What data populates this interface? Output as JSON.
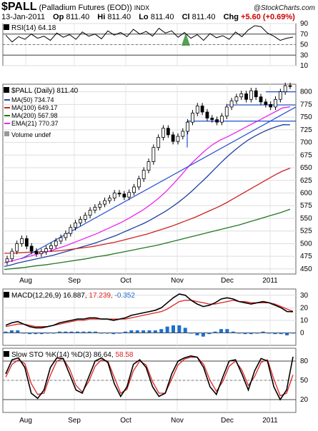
{
  "header": {
    "symbol": "$PALL",
    "name": "(Palladium Futures (EOD))",
    "exchange": "INDX",
    "source": "@StockCharts.com",
    "date": "13-Jan-2011",
    "open_label": "Op",
    "open": "811.40",
    "high_label": "Hi",
    "high": "811.40",
    "low_label": "Lo",
    "low": "811.40",
    "close_label": "Cl",
    "close": "811.40",
    "change_label": "Chg",
    "change": "+5.60 (+0.69%)",
    "change_color": "#cc0000"
  },
  "chart_data": [
    {
      "type": "line",
      "panel": "rsi",
      "title": "RSI(14) 64.18",
      "ylim": [
        10,
        90
      ],
      "yticks": [
        10,
        30,
        50,
        70,
        90
      ],
      "reference_lines": [
        30,
        70
      ],
      "series": [
        {
          "name": "RSI(14)",
          "values": [
            68,
            55,
            65,
            60,
            70,
            62,
            66,
            58,
            72,
            64,
            69,
            60,
            74,
            66,
            70,
            61,
            76,
            68,
            73,
            65,
            79,
            70,
            75,
            66,
            81,
            72,
            76,
            64,
            73,
            62,
            69,
            58,
            71,
            63,
            67,
            60,
            74,
            65,
            78,
            86,
            84,
            72,
            66,
            58,
            62,
            64.18
          ],
          "color": "#000000"
        }
      ]
    },
    {
      "type": "candlestick",
      "panel": "price",
      "title": "$PALL (Daily) 811.40",
      "x_labels": [
        "Aug",
        "Sep",
        "Oct",
        "Nov",
        "Dec",
        "2011"
      ],
      "ylim": [
        440,
        815
      ],
      "yticks": [
        450,
        475,
        500,
        525,
        550,
        575,
        600,
        625,
        650,
        675,
        700,
        725,
        750,
        775,
        800
      ],
      "closes": [
        470,
        485,
        500,
        510,
        495,
        485,
        480,
        484,
        490,
        496,
        505,
        512,
        520,
        532,
        541,
        548,
        556,
        566,
        572,
        578,
        585,
        590,
        600,
        598,
        592,
        601,
        612,
        628,
        645,
        662,
        690,
        710,
        728,
        715,
        702,
        712,
        722,
        740,
        758,
        772,
        760,
        748,
        745,
        740,
        752,
        770,
        782,
        790,
        796,
        785,
        802,
        790,
        780,
        775,
        770,
        785,
        800,
        812,
        811.4
      ],
      "overlays": [
        {
          "name": "MA(50)",
          "value": "734.74",
          "color": "#1f3fa0",
          "values": [
            455,
            458,
            462,
            465,
            468,
            471,
            474,
            477,
            481,
            485,
            489,
            493,
            497,
            501,
            506,
            511,
            516,
            522,
            528,
            534,
            540,
            547,
            555,
            563,
            572,
            582,
            593,
            605,
            618,
            631,
            645,
            659,
            672,
            684,
            695,
            705,
            713,
            720,
            726,
            731,
            735,
            734.74
          ]
        },
        {
          "name": "MA(100)",
          "value": "649.17",
          "color": "#cc2222",
          "values": [
            481,
            481,
            482,
            483,
            483,
            484,
            485,
            486,
            488,
            490,
            492,
            494,
            497,
            500,
            503,
            507,
            511,
            515,
            519,
            524,
            529,
            534,
            540,
            546,
            552,
            559,
            566,
            573,
            581,
            590,
            599,
            608,
            617,
            626,
            635,
            643,
            649.17
          ]
        },
        {
          "name": "MA(200)",
          "value": "567.98",
          "color": "#227722",
          "values": [
            449,
            451,
            453,
            456,
            458,
            461,
            464,
            467,
            470,
            474,
            477,
            481,
            485,
            489,
            493,
            497,
            502,
            507,
            512,
            517,
            522,
            527,
            532,
            537,
            543,
            549,
            555,
            561,
            567.98
          ]
        },
        {
          "name": "EMA(21)",
          "value": "770.37",
          "color": "#ee22ee",
          "values": [
            462,
            466,
            470,
            474,
            478,
            482,
            486,
            491,
            496,
            502,
            508,
            514,
            520,
            527,
            534,
            541,
            549,
            558,
            567,
            578,
            590,
            604,
            620,
            637,
            655,
            670,
            684,
            696,
            705,
            712,
            720,
            728,
            736,
            744,
            752,
            760,
            768,
            770.37
          ]
        }
      ],
      "volume_label": "Volume undef",
      "trendlines": [
        {
          "color": "#1f4fd0",
          "kind": "rising support"
        },
        {
          "color": "#1f4fd0",
          "kind": "horizontal 742"
        },
        {
          "color": "#1f4fd0",
          "kind": "horizontal 774"
        },
        {
          "color": "#1f4fd0",
          "kind": "horizontal 800"
        }
      ]
    },
    {
      "type": "line",
      "panel": "macd",
      "title": "MACD(12,26,9) 16.887, 17.239, -0.352",
      "title_parts": {
        "prefix": "MACD(12,26,9)",
        "macd": "16.887",
        "signal": "17.239",
        "hist": "-0.352"
      },
      "ylim": [
        -10,
        35
      ],
      "yticks": [
        0,
        10,
        20,
        30
      ],
      "series": [
        {
          "name": "MACD",
          "color": "#000000",
          "values": [
            6,
            8,
            9,
            7,
            5,
            4,
            4,
            5,
            6,
            8,
            9,
            10,
            11,
            11,
            12,
            12,
            11,
            11,
            10,
            11,
            12,
            14,
            15,
            16,
            17,
            18,
            20,
            24,
            28,
            31,
            30,
            26,
            23,
            21,
            22,
            24,
            27,
            28,
            27,
            25,
            24,
            23,
            24,
            25,
            24,
            22,
            20,
            17,
            16.887
          ]
        },
        {
          "name": "Signal",
          "color": "#dd2222",
          "values": [
            5,
            6,
            7,
            7,
            6,
            5,
            5,
            5,
            6,
            7,
            8,
            9,
            10,
            10,
            11,
            11,
            11,
            11,
            11,
            11,
            11,
            12,
            13,
            14,
            15,
            16,
            17,
            19,
            22,
            25,
            26,
            26,
            25,
            24,
            23,
            23,
            24,
            25,
            26,
            25,
            25,
            24,
            24,
            24,
            24,
            23,
            21,
            19,
            17.239
          ]
        },
        {
          "name": "Histogram",
          "color": "#1f6fcc",
          "values": [
            1,
            2,
            2,
            0,
            -1,
            -1,
            -1,
            0,
            0,
            1,
            1,
            1,
            1,
            1,
            1,
            1,
            0,
            0,
            -1,
            0,
            1,
            2,
            2,
            2,
            2,
            2,
            3,
            5,
            6,
            6,
            4,
            0,
            -2,
            -3,
            -1,
            1,
            3,
            3,
            1,
            0,
            -1,
            -1,
            0,
            1,
            0,
            -1,
            -1,
            -2,
            -0.352
          ]
        }
      ]
    },
    {
      "type": "line",
      "panel": "sto",
      "title": "Slow STO %K(14) %D(3) 86.64, 58.58",
      "title_parts": {
        "prefix": "Slow STO %K(14) %D(3)",
        "k": "86.64",
        "d": "58.58"
      },
      "ylim": [
        0,
        100
      ],
      "yticks": [
        20,
        50,
        80
      ],
      "reference_lines": [
        20,
        80
      ],
      "x_labels": [
        "Aug",
        "Sep",
        "Oct",
        "Nov",
        "Dec",
        "2011"
      ],
      "series": [
        {
          "name": "%K",
          "color": "#000000",
          "values": [
            60,
            82,
            85,
            70,
            30,
            22,
            35,
            70,
            85,
            84,
            60,
            35,
            30,
            55,
            80,
            85,
            78,
            45,
            25,
            40,
            75,
            82,
            70,
            40,
            25,
            30,
            60,
            80,
            85,
            88,
            86,
            70,
            40,
            28,
            55,
            80,
            82,
            60,
            35,
            65,
            84,
            80,
            40,
            20,
            35,
            86.64
          ]
        },
        {
          "name": "%D",
          "color": "#dd2222",
          "values": [
            55,
            75,
            82,
            76,
            45,
            28,
            30,
            58,
            80,
            84,
            68,
            42,
            32,
            48,
            72,
            82,
            80,
            55,
            30,
            36,
            65,
            80,
            74,
            48,
            30,
            30,
            52,
            74,
            83,
            86,
            86,
            75,
            50,
            33,
            48,
            72,
            80,
            66,
            42,
            56,
            78,
            82,
            52,
            26,
            30,
            58.58
          ]
        }
      ]
    }
  ]
}
